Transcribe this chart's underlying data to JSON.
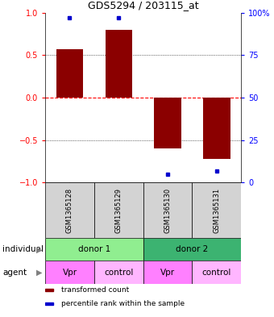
{
  "title": "GDS5294 / 203115_at",
  "samples": [
    "GSM1365128",
    "GSM1365129",
    "GSM1365130",
    "GSM1365131"
  ],
  "bar_values": [
    0.57,
    0.8,
    -0.6,
    -0.72
  ],
  "percentile_values": [
    0.97,
    0.97,
    0.05,
    0.07
  ],
  "bar_color": "#8B0000",
  "percentile_color": "#0000CD",
  "ylim": [
    -1,
    1
  ],
  "y_ticks_left": [
    -1,
    -0.5,
    0,
    0.5,
    1
  ],
  "y_ticks_right_vals": [
    0,
    25,
    50,
    75,
    100
  ],
  "y_ticks_right_labels": [
    "0",
    "25",
    "50",
    "75",
    "100%"
  ],
  "individuals": [
    {
      "label": "donor 1",
      "span": [
        0,
        2
      ],
      "color": "#90EE90"
    },
    {
      "label": "donor 2",
      "span": [
        2,
        4
      ],
      "color": "#3CB371"
    }
  ],
  "agents": [
    {
      "label": "Vpr",
      "span": [
        0,
        1
      ],
      "color": "#FF80FF"
    },
    {
      "label": "control",
      "span": [
        1,
        2
      ],
      "color": "#FFB6FF"
    },
    {
      "label": "Vpr",
      "span": [
        2,
        3
      ],
      "color": "#FF80FF"
    },
    {
      "label": "control",
      "span": [
        3,
        4
      ],
      "color": "#FFB6FF"
    }
  ],
  "sample_bg": "#D3D3D3",
  "legend_items": [
    {
      "label": "transformed count",
      "color": "#8B0000"
    },
    {
      "label": "percentile rank within the sample",
      "color": "#0000CD"
    }
  ],
  "zero_line_color": "#FF0000",
  "bar_width": 0.55,
  "n": 4
}
